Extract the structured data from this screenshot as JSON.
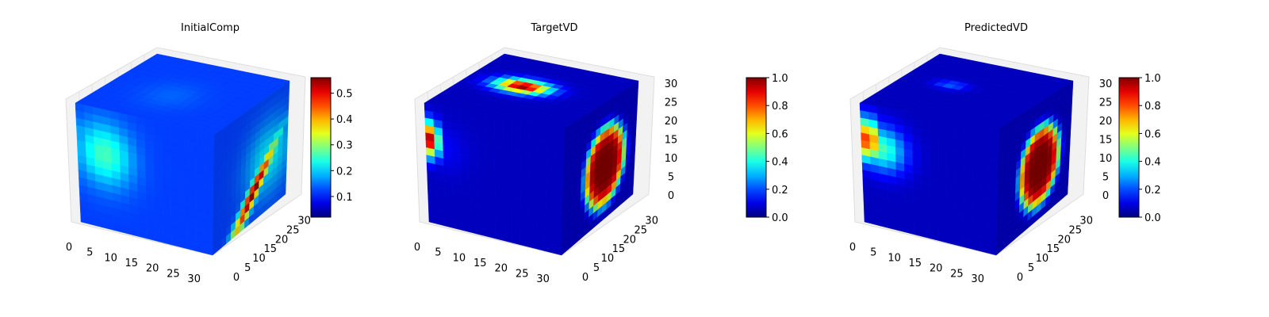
{
  "chart_data": [
    {
      "type": "heatmap",
      "title": "InitialComp",
      "volume": "3D voxel cube",
      "axes": {
        "x_ticks": [
          0,
          5,
          10,
          15,
          20,
          25,
          30
        ],
        "y_ticks": [
          0,
          5,
          10,
          15,
          20,
          25,
          30
        ],
        "z_ticks": []
      },
      "colorbar": {
        "min": 0.02,
        "max": 0.56,
        "ticks": [
          0.1,
          0.2,
          0.3,
          0.4,
          0.5
        ],
        "colormap": "jet"
      },
      "blobs": [
        {
          "face": "top",
          "u": 0.45,
          "v": 0.42,
          "su": 0.14,
          "sv": 0.15,
          "value": 0.14
        },
        {
          "face": "top",
          "u": 0.08,
          "v": 0.85,
          "su": 0.1,
          "sv": 0.1,
          "value": 0.12
        },
        {
          "face": "front",
          "u": 0.2,
          "v": 0.38,
          "su": 0.14,
          "sv": 0.18,
          "value": 0.26
        },
        {
          "face": "front",
          "u": 0.06,
          "v": 0.25,
          "su": 0.1,
          "sv": 0.1,
          "value": 0.18
        },
        {
          "face": "side",
          "u": 0.55,
          "v": 0.75,
          "su": 0.3,
          "sv": 0.05,
          "value": 0.56,
          "line": true
        },
        {
          "face": "side",
          "u": 0.75,
          "v": 0.55,
          "su": 0.22,
          "sv": 0.22,
          "value": 0.22
        }
      ]
    },
    {
      "type": "heatmap",
      "title": "TargetVD",
      "volume": "3D voxel cube",
      "axes": {
        "x_ticks": [
          0,
          5,
          10,
          15,
          20,
          25,
          30
        ],
        "y_ticks": [
          0,
          5,
          10,
          15,
          20,
          25,
          30
        ],
        "z_ticks": [
          0,
          5,
          10,
          15,
          20,
          25,
          30
        ]
      },
      "colorbar": {
        "min": 0.0,
        "max": 1.0,
        "ticks": [
          0.0,
          0.2,
          0.4,
          0.6,
          0.8,
          1.0
        ],
        "colormap": "jet"
      },
      "blobs": [
        {
          "face": "top",
          "u": 0.4,
          "v": 0.55,
          "su": 0.13,
          "sv": 0.08,
          "value": 1.0
        },
        {
          "face": "front",
          "u": 0.03,
          "v": 0.3,
          "su": 0.05,
          "sv": 0.1,
          "value": 0.95
        },
        {
          "face": "front",
          "u": 0.12,
          "v": 0.35,
          "su": 0.12,
          "sv": 0.14,
          "value": 0.12
        },
        {
          "face": "side",
          "u": 0.58,
          "v": 0.55,
          "su": 0.25,
          "sv": 0.3,
          "value": 1.0,
          "flat": true
        }
      ]
    },
    {
      "type": "heatmap",
      "title": "PredictedVD",
      "volume": "3D voxel cube",
      "axes": {
        "x_ticks": [
          0,
          5,
          10,
          15,
          20,
          25,
          30
        ],
        "y_ticks": [
          0,
          5,
          10,
          15,
          20,
          25,
          30
        ],
        "z_ticks": [
          0,
          5,
          10,
          15,
          20,
          25,
          30
        ]
      },
      "colorbar": {
        "min": 0.0,
        "max": 1.0,
        "ticks": [
          0.0,
          0.2,
          0.4,
          0.6,
          0.8,
          1.0
        ],
        "colormap": "jet"
      },
      "blobs": [
        {
          "face": "top",
          "u": 0.35,
          "v": 0.55,
          "su": 0.08,
          "sv": 0.05,
          "value": 0.22
        },
        {
          "face": "front",
          "u": 0.05,
          "v": 0.3,
          "su": 0.07,
          "sv": 0.12,
          "value": 0.85
        },
        {
          "face": "front",
          "u": 0.15,
          "v": 0.35,
          "su": 0.12,
          "sv": 0.13,
          "value": 0.45
        },
        {
          "face": "side",
          "u": 0.58,
          "v": 0.55,
          "su": 0.25,
          "sv": 0.3,
          "value": 1.0,
          "flat": true
        }
      ]
    }
  ]
}
